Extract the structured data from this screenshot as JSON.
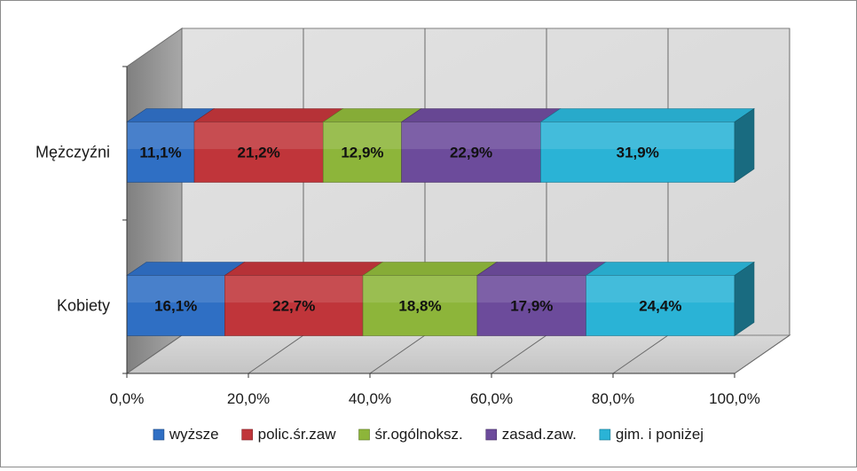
{
  "chart_data": {
    "type": "bar",
    "orientation": "horizontal",
    "stacked": "percent",
    "three_d": true,
    "categories": [
      "Mężczyźni",
      "Kobiety"
    ],
    "series": [
      {
        "name": "wyższe",
        "color": "#2f6fc4",
        "values": [
          11.1,
          16.1
        ],
        "labels": [
          "11,1%",
          "16,1%"
        ]
      },
      {
        "name": "polic.śr.zaw",
        "color": "#c0353a",
        "values": [
          21.2,
          22.7
        ],
        "labels": [
          "21,2%",
          "22,7%"
        ]
      },
      {
        "name": "śr.ogólnoksz.",
        "color": "#8db53a",
        "values": [
          12.9,
          18.8
        ],
        "labels": [
          "12,9%",
          "18,8%"
        ]
      },
      {
        "name": "zasad.zaw.",
        "color": "#6c4b9b",
        "values": [
          22.9,
          17.9
        ],
        "labels": [
          "22,9%",
          "17,9%"
        ]
      },
      {
        "name": "gim. i poniżej",
        "color": "#2ab3d6",
        "values": [
          31.9,
          24.4
        ],
        "labels": [
          "31,9%",
          "24,4%"
        ]
      }
    ],
    "xlim": [
      0,
      100
    ],
    "x_ticks": [
      "0,0%",
      "20,0%",
      "40,0%",
      "60,0%",
      "80,0%",
      "100,0%"
    ],
    "grid": true,
    "legend_position": "bottom",
    "title": "",
    "xlabel": "",
    "ylabel": ""
  }
}
